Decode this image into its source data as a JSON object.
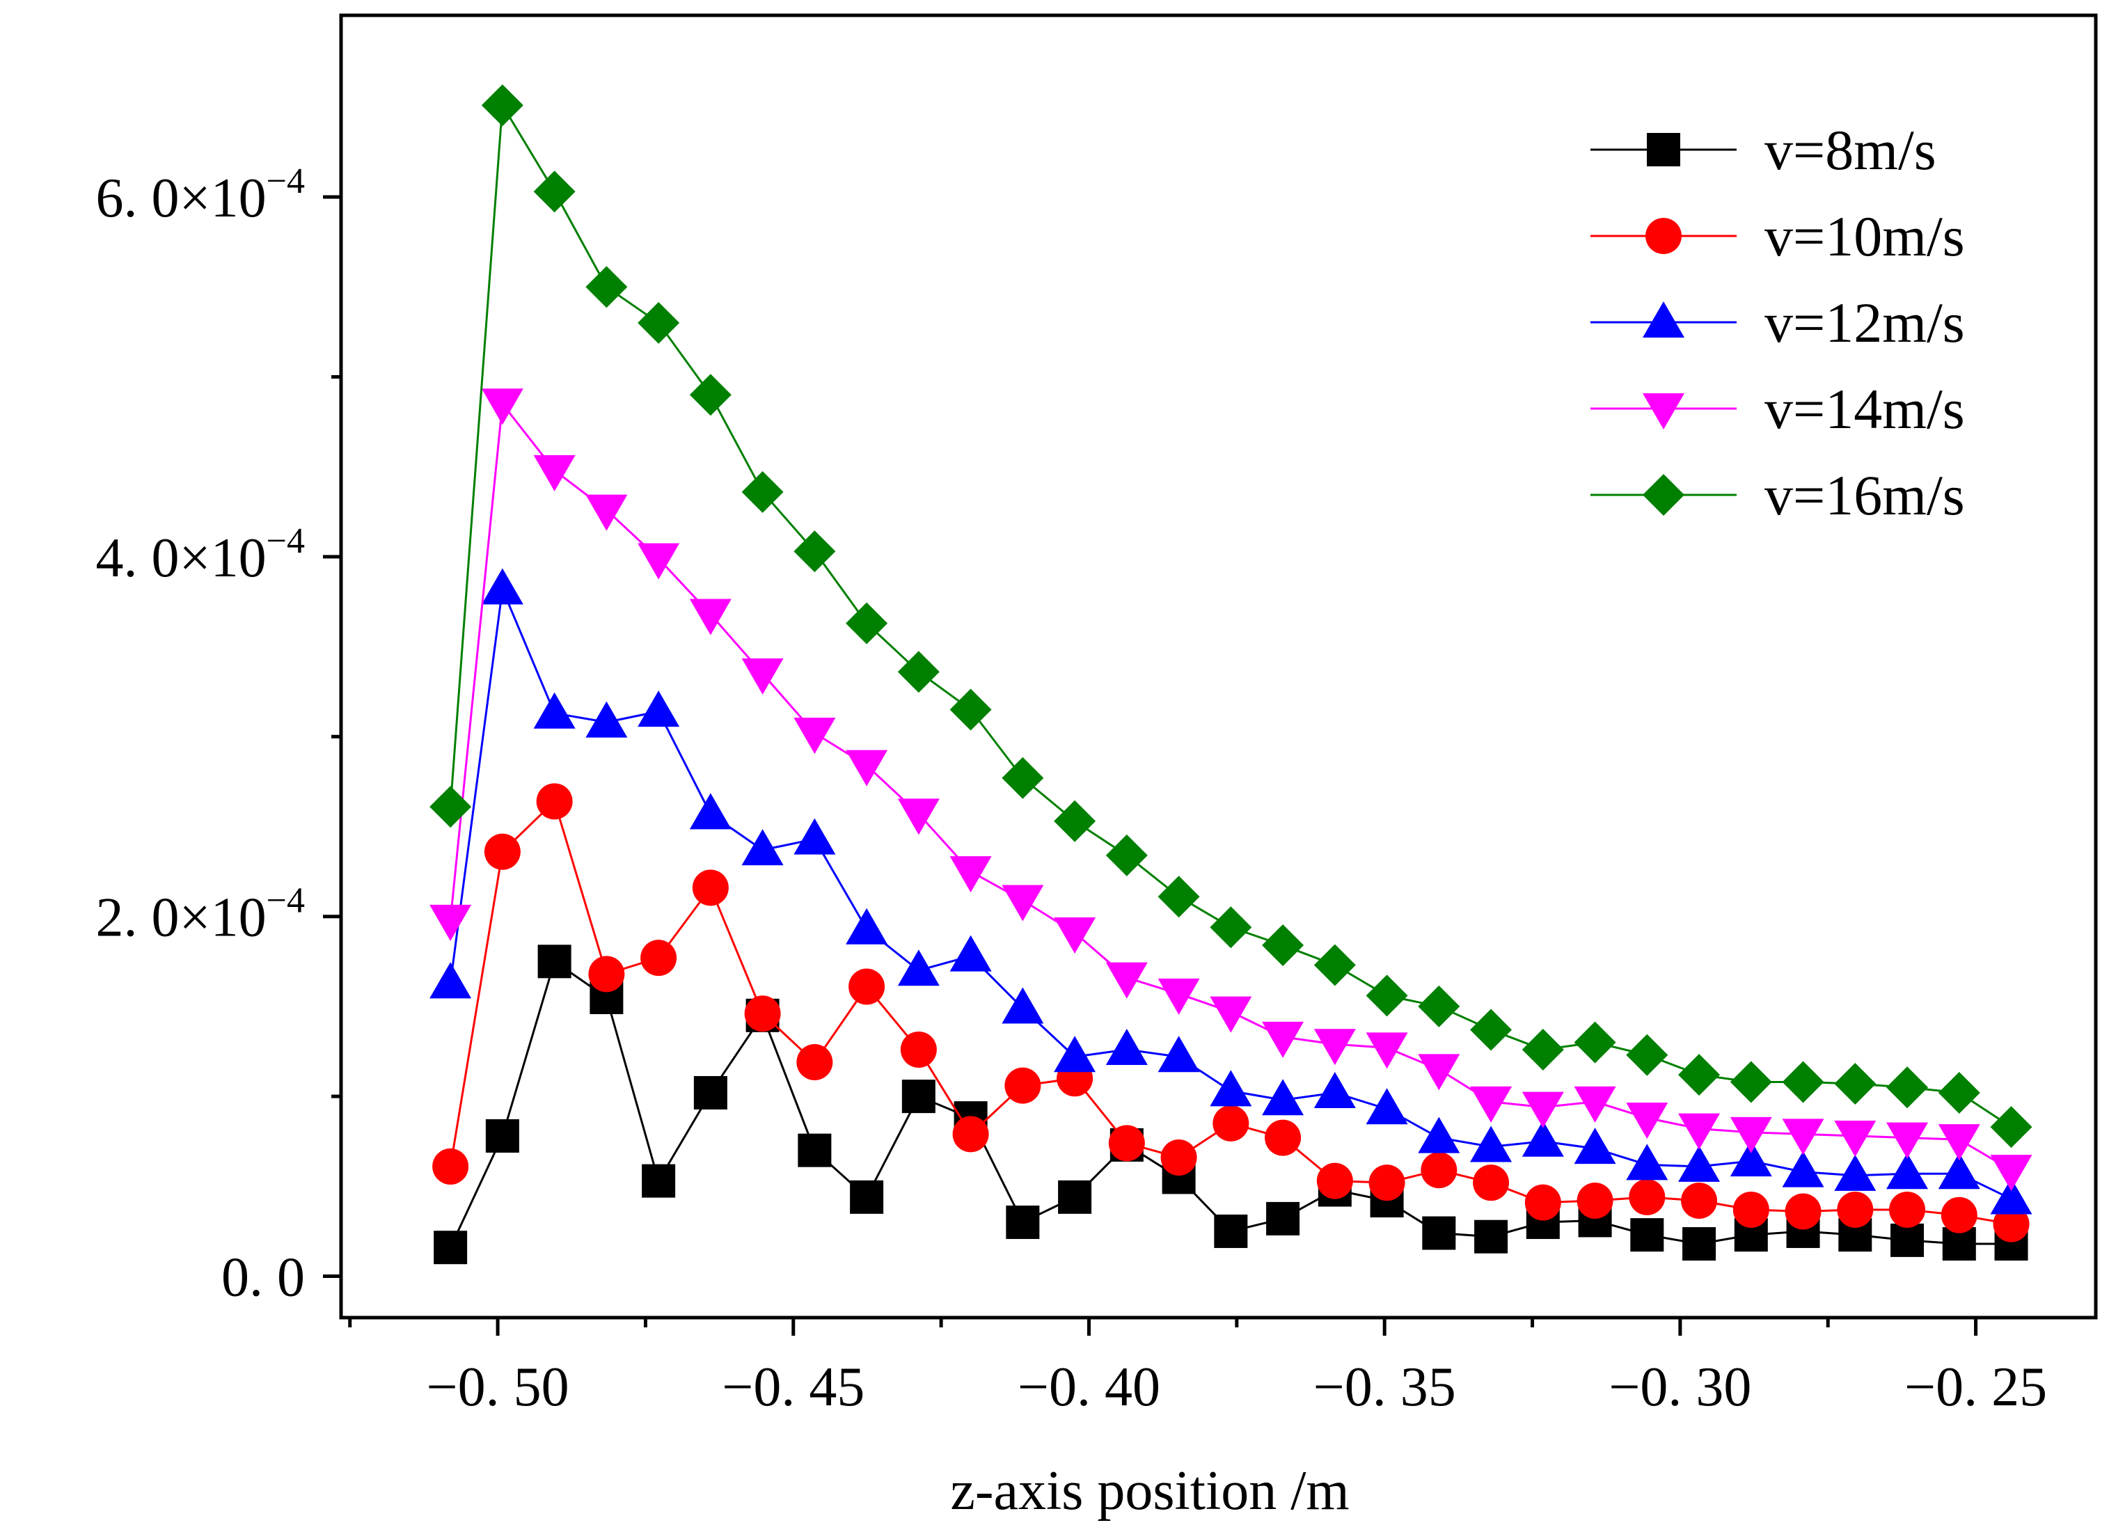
{
  "chart_data": {
    "type": "line",
    "title": "",
    "xlabel": "z-axis position /m",
    "ylabel": "",
    "xlim": [
      -0.5265,
      -0.2297
    ],
    "ylim": [
      -2.3e-05,
      0.000701
    ],
    "x_ticks": [
      {
        "value": -0.5,
        "label": "−0. 50"
      },
      {
        "value": -0.45,
        "label": "−0. 45"
      },
      {
        "value": -0.4,
        "label": "−0. 40"
      },
      {
        "value": -0.35,
        "label": "−0. 35"
      },
      {
        "value": -0.3,
        "label": "−0. 30"
      },
      {
        "value": -0.25,
        "label": "−0. 25"
      }
    ],
    "x_minor_ticks": [
      -0.525,
      -0.475,
      -0.425,
      -0.375,
      -0.325,
      -0.275,
      -0.225
    ],
    "y_ticks": [
      {
        "value": 0.0,
        "label": "0. 0",
        "exp": ""
      },
      {
        "value": 0.0002,
        "label": "2. 0×10",
        "exp": "−4"
      },
      {
        "value": 0.0004,
        "label": "4. 0×10",
        "exp": "−4"
      },
      {
        "value": 0.0006,
        "label": "6. 0×10",
        "exp": "−4"
      }
    ],
    "y_minor_ticks": [
      0.0001,
      0.0003,
      0.0005
    ],
    "legend_position": "top-right",
    "x": [
      -0.508,
      -0.4992,
      -0.4904,
      -0.4816,
      -0.4728,
      -0.464,
      -0.4552,
      -0.4464,
      -0.4376,
      -0.4288,
      -0.42,
      -0.4112,
      -0.4024,
      -0.3936,
      -0.3848,
      -0.376,
      -0.3672,
      -0.3584,
      -0.3496,
      -0.3408,
      -0.332,
      -0.3232,
      -0.3144,
      -0.3056,
      -0.2968,
      -0.288,
      -0.2792,
      -0.2704,
      -0.2616,
      -0.2528,
      -0.244
    ],
    "series": [
      {
        "name": "v=8m/s",
        "color": "#000000",
        "marker": "square",
        "values": [
          1.6e-05,
          7.8e-05,
          0.000175,
          0.000155,
          5.3e-05,
          0.000102,
          0.000145,
          7e-05,
          4.4e-05,
          0.0001,
          8.8e-05,
          3e-05,
          4.4e-05,
          7.3e-05,
          5.5e-05,
          2.5e-05,
          3.2e-05,
          4.8e-05,
          4.2e-05,
          2.4e-05,
          2.2e-05,
          3e-05,
          3.1e-05,
          2.3e-05,
          1.8e-05,
          2.3e-05,
          2.5e-05,
          2.3e-05,
          2e-05,
          1.8e-05,
          1.8e-05
        ]
      },
      {
        "name": "v=10m/s",
        "color": "#ff0000",
        "marker": "circle",
        "values": [
          6.1e-05,
          0.000236,
          0.000264,
          0.000168,
          0.000177,
          0.000216,
          0.000146,
          0.000119,
          0.000161,
          0.000126,
          7.9e-05,
          0.000106,
          0.00011,
          7.4e-05,
          6.6e-05,
          8.5e-05,
          7.7e-05,
          5.3e-05,
          5.2e-05,
          5.9e-05,
          5.2e-05,
          4.1e-05,
          4.2e-05,
          4.4e-05,
          4.2e-05,
          3.7e-05,
          3.6e-05,
          3.7e-05,
          3.7e-05,
          3.4e-05,
          2.9e-05
        ]
      },
      {
        "name": "v=12m/s",
        "color": "#0000ff",
        "marker": "triangle-up",
        "values": [
          0.000163,
          0.000382,
          0.000313,
          0.000308,
          0.000314,
          0.000257,
          0.000237,
          0.000243,
          0.000193,
          0.00017,
          0.000178,
          0.000149,
          0.000122,
          0.000126,
          0.000122,
          0.000103,
          9.8e-05,
          0.000102,
          9.3e-05,
          7.7e-05,
          7.2e-05,
          7.5e-05,
          7.1e-05,
          6.2e-05,
          6.1e-05,
          6.4e-05,
          5.8e-05,
          5.6e-05,
          5.7e-05,
          5.7e-05,
          4.3e-05
        ]
      },
      {
        "name": "v=14m/s",
        "color": "#ff00ff",
        "marker": "triangle-down",
        "values": [
          0.000198,
          0.000485,
          0.000448,
          0.000426,
          0.000399,
          0.000368,
          0.000335,
          0.000302,
          0.000284,
          0.000257,
          0.000225,
          0.000209,
          0.000191,
          0.000166,
          0.000157,
          0.000147,
          0.000133,
          0.000129,
          0.000127,
          0.000115,
          9.7e-05,
          9.4e-05,
          9.7e-05,
          8.8e-05,
          8.2e-05,
          8e-05,
          7.9e-05,
          7.8e-05,
          7.7e-05,
          7.6e-05,
          5.9e-05
        ]
      },
      {
        "name": "v=16m/s",
        "color": "#008000",
        "marker": "diamond",
        "values": [
          0.000261,
          0.000651,
          0.000603,
          0.00055,
          0.00053,
          0.00049,
          0.000436,
          0.000403,
          0.000363,
          0.000336,
          0.000315,
          0.000277,
          0.000253,
          0.000234,
          0.000211,
          0.000194,
          0.000184,
          0.000173,
          0.000156,
          0.00015,
          0.000137,
          0.000126,
          0.00013,
          0.000123,
          0.000112,
          0.000108,
          0.000108,
          0.000107,
          0.000105,
          0.000102,
          8.3e-05
        ]
      }
    ]
  }
}
